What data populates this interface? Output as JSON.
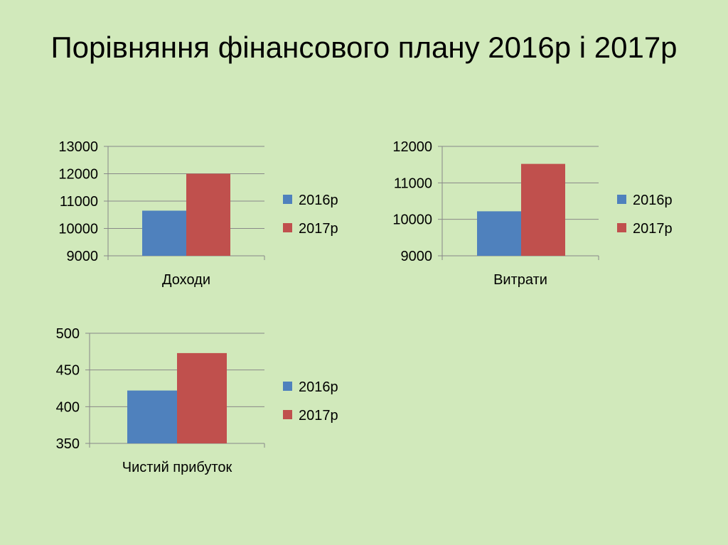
{
  "slide": {
    "title": "Порівняння фінансового плану 2016р і 2017р"
  },
  "colors": {
    "background": "#d1e9bb",
    "series_2016": "#4f81bd",
    "series_2017": "#c0504d",
    "axis": "#888888"
  },
  "chart_data": [
    {
      "type": "bar",
      "categories": [
        "Доходи"
      ],
      "series": [
        {
          "name": "2016р",
          "values": [
            10650
          ]
        },
        {
          "name": "2017р",
          "values": [
            12000
          ]
        }
      ],
      "ylim": [
        9000,
        13000
      ],
      "yticks": [
        "9000",
        "10000",
        "11000",
        "12000",
        "13000"
      ],
      "grid": true,
      "legend": "right"
    },
    {
      "type": "bar",
      "categories": [
        "Витрати"
      ],
      "series": [
        {
          "name": "2016р",
          "values": [
            10220
          ]
        },
        {
          "name": "2017р",
          "values": [
            11520
          ]
        }
      ],
      "ylim": [
        9000,
        12000
      ],
      "yticks": [
        "9000",
        "10000",
        "11000",
        "12000"
      ],
      "grid": true,
      "legend": "right"
    },
    {
      "type": "bar",
      "categories": [
        "Чистий прибуток"
      ],
      "series": [
        {
          "name": "2016р",
          "values": [
            422
          ]
        },
        {
          "name": "2017р",
          "values": [
            473
          ]
        }
      ],
      "ylim": [
        350,
        500
      ],
      "yticks": [
        "350",
        "400",
        "450",
        "500"
      ],
      "grid": true,
      "legend": "right"
    }
  ]
}
